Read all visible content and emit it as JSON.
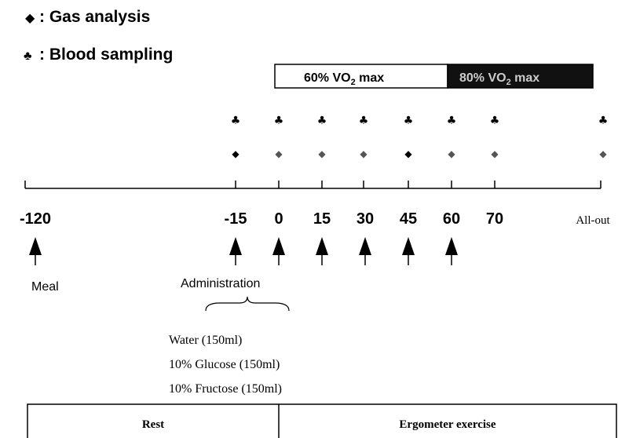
{
  "legend": {
    "gas": {
      "symbol": "◆",
      "label": ": Gas analysis"
    },
    "blood": {
      "symbol": "♣",
      "label": ": Blood sampling"
    }
  },
  "intensity": {
    "low": {
      "prefix": "60% VO",
      "sub": "2",
      "suffix": " max"
    },
    "high": {
      "prefix": "80% VO",
      "sub": "2",
      "suffix": " max"
    }
  },
  "timeline": {
    "labels": [
      "-120",
      "-15",
      "0",
      "15",
      "30",
      "45",
      "60",
      "70",
      "All-out"
    ]
  },
  "events": {
    "meal": "Meal",
    "administration": "Administration"
  },
  "drinks": [
    "Water (150ml)",
    "10% Glucose (150ml)",
    "10% Fructose (150ml)"
  ],
  "phases": {
    "rest": "Rest",
    "exercise": "Ergometer exercise"
  }
}
